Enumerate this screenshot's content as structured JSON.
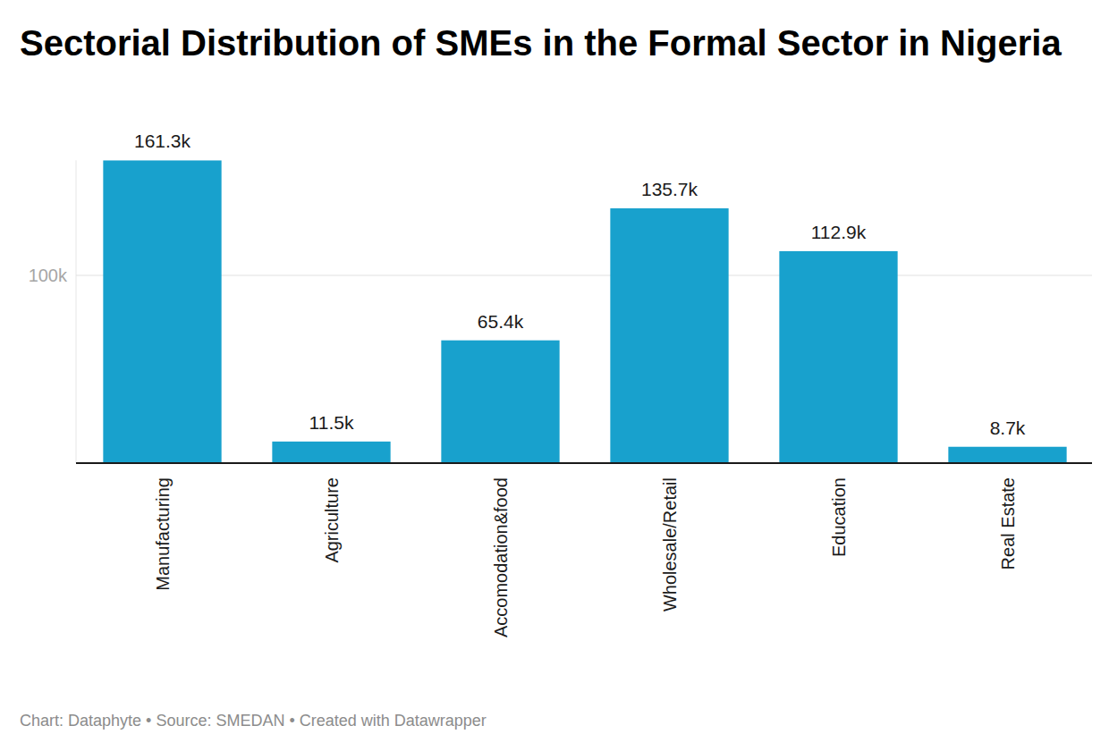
{
  "chart_data": {
    "type": "bar",
    "title": "Sectorial Distribution of SMEs in the Formal Sector in Nigeria",
    "categories": [
      "Manufacturing",
      "Agriculture",
      "Accomodation&food",
      "Wholesale/Retail",
      "Education",
      "Real Estate"
    ],
    "values": [
      161300,
      11500,
      65400,
      135700,
      112900,
      8700
    ],
    "value_labels": [
      "161.3k",
      "11.5k",
      "65.4k",
      "135.7k",
      "112.9k",
      "8.7k"
    ],
    "color": "#18a1cd",
    "ylim": [
      0,
      161300
    ],
    "yticks": [
      {
        "value": 100000,
        "label": "100k"
      }
    ],
    "grid": true,
    "data_labels": true,
    "annotations": [
      "Chart: Dataphyte • Source: SMEDAN • Created with Datawrapper"
    ]
  }
}
